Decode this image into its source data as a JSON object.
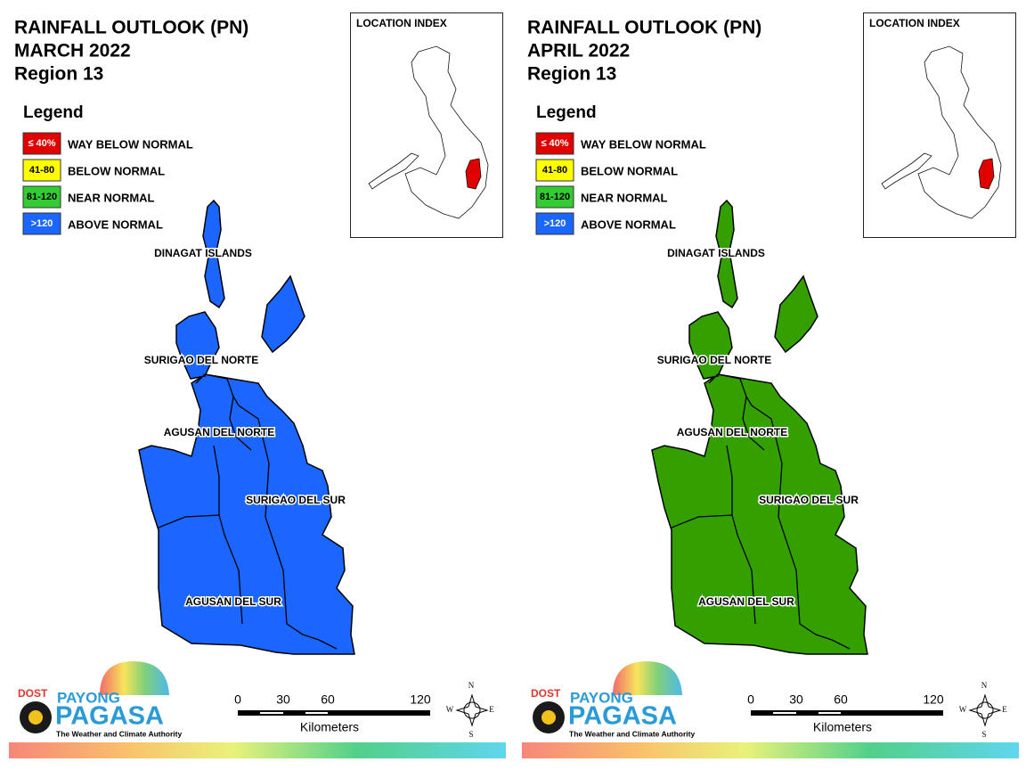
{
  "panels": [
    {
      "title": "RAINFALL OUTLOOK (PN)",
      "month": "MARCH 2022",
      "region": "Region 13",
      "fill": "#1a66ff",
      "legend_title": "Legend",
      "legend": [
        {
          "swatch": "≤ 40%",
          "label": "WAY BELOW NORMAL"
        },
        {
          "swatch": "41-80",
          "label": "BELOW NORMAL"
        },
        {
          "swatch": "81-120",
          "label": "NEAR NORMAL"
        },
        {
          "swatch": ">120",
          "label": "ABOVE NORMAL"
        }
      ],
      "provinces": [
        "DINAGAT ISLANDS",
        "SURIGAO DEL NORTE",
        "AGUSAN DEL NORTE",
        "SURIGAO DEL SUR",
        "AGUSAN DEL SUR"
      ],
      "index_title": "LOCATION INDEX",
      "scale": {
        "ticks": [
          "0",
          "30",
          "60",
          "120"
        ],
        "unit": "Kilometers"
      },
      "compass": [
        "N",
        "E",
        "S",
        "W"
      ],
      "logo": {
        "dost": "DOST",
        "payong": "PAYONG",
        "pagasa": "PAGASA",
        "tagline": "The Weather and Climate Authority"
      }
    },
    {
      "title": "RAINFALL OUTLOOK (PN)",
      "month": "APRIL 2022",
      "region": "Region 13",
      "fill": "#33a000",
      "legend_title": "Legend",
      "legend": [
        {
          "swatch": "≤ 40%",
          "label": "WAY BELOW NORMAL"
        },
        {
          "swatch": "41-80",
          "label": "BELOW NORMAL"
        },
        {
          "swatch": "81-120",
          "label": "NEAR NORMAL"
        },
        {
          "swatch": ">120",
          "label": "ABOVE NORMAL"
        }
      ],
      "provinces": [
        "DINAGAT ISLANDS",
        "SURIGAO DEL NORTE",
        "AGUSAN DEL NORTE",
        "SURIGAO DEL SUR",
        "AGUSAN DEL SUR"
      ],
      "index_title": "LOCATION INDEX",
      "scale": {
        "ticks": [
          "0",
          "30",
          "60",
          "120"
        ],
        "unit": "Kilometers"
      },
      "compass": [
        "N",
        "E",
        "S",
        "W"
      ],
      "logo": {
        "dost": "DOST",
        "payong": "PAYONG",
        "pagasa": "PAGASA",
        "tagline": "The Weather and Climate Authority"
      }
    }
  ]
}
